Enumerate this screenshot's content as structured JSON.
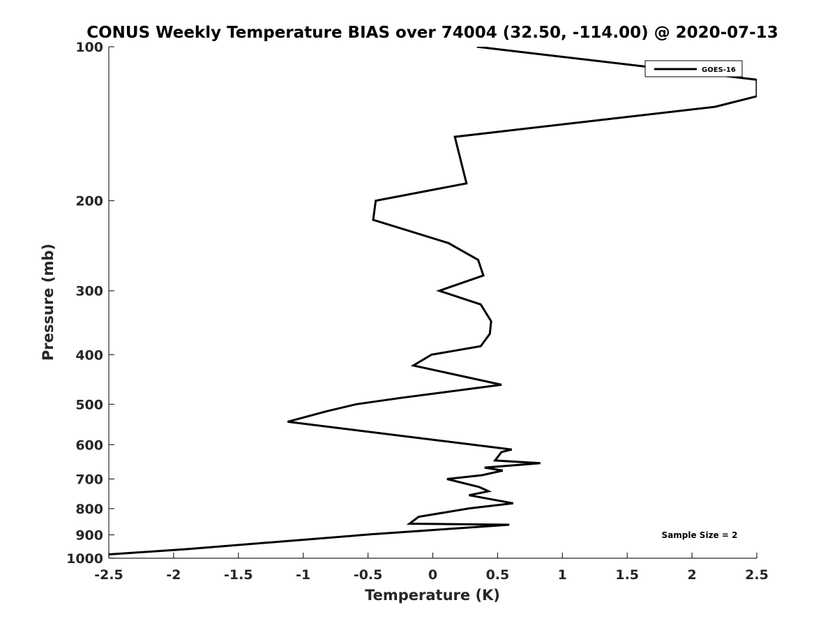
{
  "chart_data": {
    "type": "line",
    "title": "CONUS Weekly Temperature BIAS over 74004 (32.50, -114.00) @ 2020-07-13",
    "xlabel": "Temperature (K)",
    "ylabel": "Pressure (mb)",
    "xlim": [
      -2.5,
      2.5
    ],
    "ylim": [
      100,
      1000
    ],
    "y_scale": "log",
    "y_reversed": true,
    "x_ticks": [
      "-2.5",
      "-2",
      "-1.5",
      "-1",
      "-0.5",
      "0",
      "0.5",
      "1",
      "1.5",
      "2",
      "2.5"
    ],
    "y_ticks": [
      "100",
      "200",
      "300",
      "400",
      "500",
      "600",
      "700",
      "800",
      "900",
      "1000"
    ],
    "grid": false,
    "legend_position": "top-right",
    "annotation": "Sample Size = 2",
    "series": [
      {
        "name": "GOES-16",
        "color": "#000000",
        "points": [
          [
            0.34,
            100
          ],
          [
            2.5,
            116
          ],
          [
            2.5,
            125
          ],
          [
            2.18,
            131
          ],
          [
            0.17,
            150
          ],
          [
            0.26,
            185
          ],
          [
            -0.44,
            200
          ],
          [
            -0.46,
            218
          ],
          [
            0.12,
            242
          ],
          [
            0.35,
            261
          ],
          [
            0.39,
            280
          ],
          [
            0.05,
            300
          ],
          [
            0.37,
            319
          ],
          [
            0.45,
            344
          ],
          [
            0.44,
            364
          ],
          [
            0.37,
            385
          ],
          [
            -0.01,
            400
          ],
          [
            -0.15,
            420
          ],
          [
            0.53,
            458
          ],
          [
            -0.25,
            486
          ],
          [
            -0.59,
            500
          ],
          [
            -0.82,
            516
          ],
          [
            -1.12,
            541
          ],
          [
            0.61,
            613
          ],
          [
            0.53,
            620
          ],
          [
            0.48,
            644
          ],
          [
            0.83,
            652
          ],
          [
            0.4,
            665
          ],
          [
            0.54,
            674
          ],
          [
            0.38,
            688
          ],
          [
            0.11,
            700
          ],
          [
            0.36,
            726
          ],
          [
            0.43,
            740
          ],
          [
            0.28,
            753
          ],
          [
            0.62,
            781
          ],
          [
            0.28,
            799
          ],
          [
            -0.11,
            830
          ],
          [
            -0.18,
            856
          ],
          [
            0.59,
            860
          ],
          [
            0.22,
            873
          ],
          [
            -0.48,
            898
          ],
          [
            -1.9,
            960
          ],
          [
            -2.5,
            983
          ]
        ]
      }
    ]
  }
}
